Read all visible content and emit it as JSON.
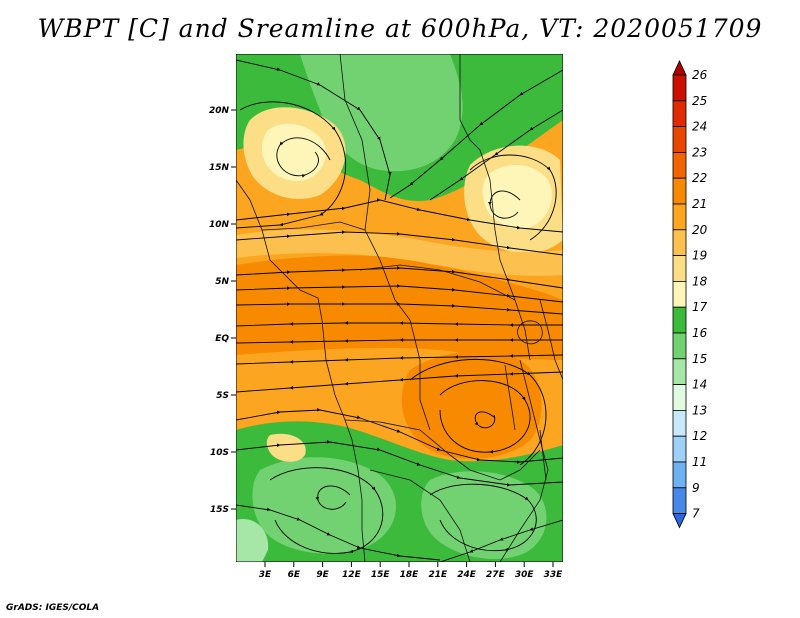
{
  "title": "WBPT [C] and Sreamline at 600hPa, VT: 2020051709",
  "footer": "GrADS: IGES/COLA",
  "map": {
    "lat_ticks": [
      "20N",
      "15N",
      "10N",
      "5N",
      "EQ",
      "5S",
      "10S",
      "15S"
    ],
    "lon_ticks": [
      "3E",
      "6E",
      "9E",
      "12E",
      "15E",
      "18E",
      "21E",
      "24E",
      "27E",
      "30E",
      "33E"
    ]
  },
  "colorbar": {
    "levels": [
      "26",
      "25",
      "24",
      "23",
      "22",
      "21",
      "20",
      "19",
      "18",
      "17",
      "16",
      "15",
      "14",
      "13",
      "12",
      "11",
      "9",
      "7"
    ],
    "colors": [
      "#b20000",
      "#cc1000",
      "#e02a00",
      "#ea4600",
      "#f26400",
      "#f78a00",
      "#fba520",
      "#fcc04f",
      "#fbde86",
      "#fdf6b8",
      "#3cba3c",
      "#72d272",
      "#a6e6a6",
      "#e0fbe0",
      "#c8e8fc",
      "#9ed0f8",
      "#6eb0f2",
      "#4888e8",
      "#2a66dc"
    ],
    "unit": "C"
  }
}
